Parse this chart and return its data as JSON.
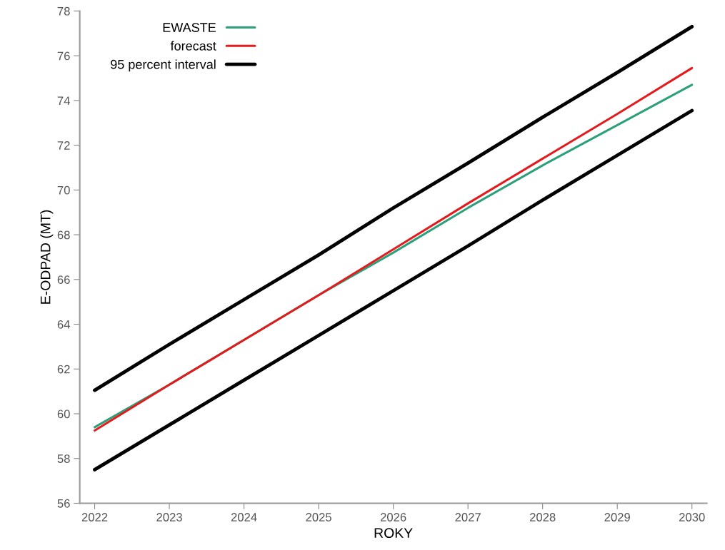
{
  "chart_data": {
    "type": "line",
    "xlabel": "ROKY",
    "ylabel": "E-ODPAD (MT)",
    "x": [
      2022,
      2023,
      2024,
      2025,
      2026,
      2027,
      2028,
      2029,
      2030
    ],
    "series": [
      {
        "name": "EWASTE",
        "color": "#2ca07a",
        "values": [
          59.4,
          61.3,
          63.3,
          65.3,
          67.2,
          69.2,
          71.1,
          72.9,
          74.7
        ]
      },
      {
        "name": "forecast",
        "color": "#e41a1c",
        "values": [
          59.25,
          61.3,
          63.3,
          65.3,
          67.35,
          69.4,
          71.4,
          73.4,
          75.45
        ]
      },
      {
        "name": "95 percent interval",
        "color": "#000000",
        "values": [
          61.05,
          63.1,
          65.1,
          67.1,
          69.2,
          71.2,
          73.25,
          75.25,
          77.3
        ]
      },
      {
        "color": "#000000",
        "values": [
          57.5,
          59.5,
          61.5,
          63.5,
          65.5,
          67.5,
          69.55,
          71.55,
          73.55
        ]
      }
    ],
    "xlim": [
      2021.8,
      2030.2
    ],
    "xticks": [
      2022,
      2023,
      2024,
      2025,
      2026,
      2027,
      2028,
      2029,
      2030
    ],
    "ylim": [
      56,
      78
    ],
    "yticks": [
      56,
      58,
      60,
      62,
      64,
      66,
      68,
      70,
      72,
      74,
      76,
      78
    ],
    "legend": "top left",
    "grid": false,
    "marker": "none",
    "line_style": "solid"
  }
}
